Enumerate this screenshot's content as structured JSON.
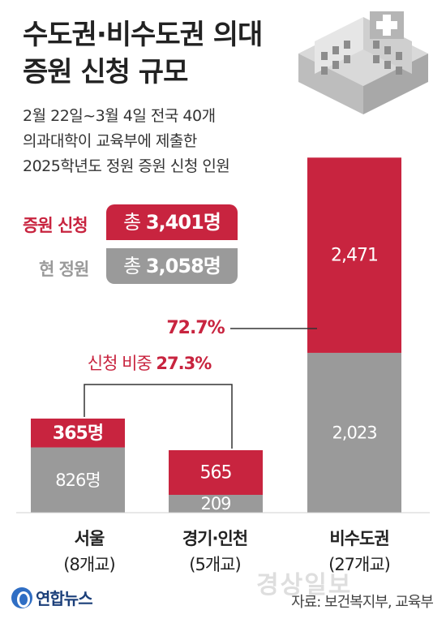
{
  "title": [
    "수도권·비수도권 의대",
    "증원 신청 규모"
  ],
  "subtitle": [
    "2월 22일~3월 4일 전국 40개",
    "의과대학이 교육부에 제출한",
    "2025학년도 정원 증원 신청 인원"
  ],
  "legend": {
    "apply_label": "증원 신청",
    "apply_prefix": "총",
    "apply_value": "3,401명",
    "current_label": "현 정원",
    "current_prefix": "총",
    "current_value": "3,058명"
  },
  "colors": {
    "apply": "#c8243f",
    "current": "#9a9a9a",
    "line": "#333333"
  },
  "annotations": {
    "pct_non_capital": "72.7%",
    "ratio_label": "신청 비중",
    "ratio_value": "27.3%"
  },
  "chart_data": {
    "type": "bar",
    "stacked": true,
    "categories": [
      "서울",
      "경기·인천",
      "비수도권"
    ],
    "category_sublabels": [
      "(8개교)",
      "(5개교)",
      "(27개교)"
    ],
    "series": [
      {
        "name": "현 정원",
        "values": [
          826,
          209,
          2023
        ],
        "labels": [
          "826명",
          "209",
          "2,023"
        ]
      },
      {
        "name": "증원 신청",
        "values": [
          365,
          565,
          2471
        ],
        "labels": [
          "365명",
          "565",
          "2,471"
        ]
      }
    ]
  },
  "footer": {
    "logo": "연합뉴스",
    "source": "자료: 보건복지부, 교육부",
    "watermark": "경상일보"
  }
}
